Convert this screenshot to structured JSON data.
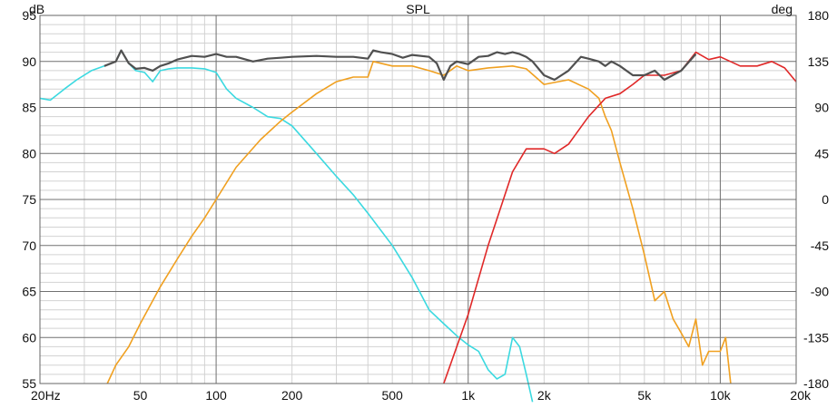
{
  "chart_data": {
    "type": "line",
    "title": "SPL",
    "y_unit_left": "dB",
    "y_unit_right": "deg",
    "x_scale": "log",
    "xlim": [
      20,
      20000
    ],
    "ylim": [
      55,
      95
    ],
    "ylim_right": [
      -180,
      180
    ],
    "grid": true,
    "x_ticks": [
      {
        "value": 20,
        "label": "20Hz"
      },
      {
        "value": 50,
        "label": "50"
      },
      {
        "value": 100,
        "label": "100"
      },
      {
        "value": 200,
        "label": "200"
      },
      {
        "value": 500,
        "label": "500"
      },
      {
        "value": 1000,
        "label": "1k"
      },
      {
        "value": 2000,
        "label": "2k"
      },
      {
        "value": 5000,
        "label": "5k"
      },
      {
        "value": 10000,
        "label": "10k"
      },
      {
        "value": 20000,
        "label": "20k"
      }
    ],
    "y_ticks_left": [
      "95",
      "90",
      "85",
      "80",
      "75",
      "70",
      "65",
      "60",
      "55"
    ],
    "y_ticks_right": [
      "180",
      "135",
      "90",
      "45",
      "0",
      "-45",
      "-90",
      "-135",
      "-180"
    ],
    "series": [
      {
        "color": "#3bd9e0",
        "x": [
          20,
          22,
          25,
          28,
          32,
          36,
          40,
          42,
          45,
          48,
          52,
          56,
          60,
          65,
          70,
          80,
          90,
          100,
          110,
          120,
          140,
          160,
          180,
          200,
          250,
          300,
          350,
          400,
          500,
          600,
          700,
          800,
          900,
          1000,
          1100,
          1200,
          1300,
          1400,
          1500,
          1600,
          1700,
          1800
        ],
        "y": [
          86,
          85.8,
          87,
          88,
          89,
          89.5,
          90,
          91.2,
          89.8,
          89,
          88.8,
          87.8,
          89,
          89.2,
          89.3,
          89.3,
          89.2,
          88.8,
          87,
          86,
          85,
          84,
          83.8,
          83,
          80,
          77.5,
          75.5,
          73.5,
          70,
          66.5,
          63,
          61.5,
          60.2,
          59.2,
          58.5,
          56.5,
          55.5,
          56,
          60,
          59,
          56,
          53
        ]
      },
      {
        "color": "#f0a020",
        "x": [
          37,
          40,
          45,
          50,
          60,
          70,
          80,
          90,
          100,
          120,
          150,
          180,
          200,
          250,
          300,
          350,
          400,
          420,
          450,
          500,
          600,
          700,
          800,
          900,
          1000,
          1200,
          1500,
          1700,
          2000,
          2500,
          3000,
          3300,
          3500,
          3700,
          4000,
          4500,
          5000,
          5500,
          6000,
          6500,
          7000,
          7500,
          8000,
          8500,
          9000,
          10000,
          10500,
          11000
        ],
        "y": [
          55,
          57,
          59,
          61.5,
          65.5,
          68.5,
          71,
          73,
          75,
          78.5,
          81.5,
          83.5,
          84.5,
          86.5,
          87.8,
          88.3,
          88.3,
          90,
          89.8,
          89.5,
          89.5,
          89,
          88.5,
          89.5,
          89,
          89.3,
          89.5,
          89.2,
          87.5,
          88,
          87,
          86,
          84,
          82.5,
          79,
          74,
          69,
          64,
          65,
          62,
          60.5,
          59,
          62,
          57,
          58.5,
          58.5,
          60,
          55
        ]
      },
      {
        "color": "#e02828",
        "x": [
          800,
          1000,
          1200,
          1500,
          1700,
          2000,
          2200,
          2500,
          3000,
          3500,
          4000,
          4500,
          5000,
          6000,
          7000,
          8000,
          9000,
          10000,
          12000,
          14000,
          16000,
          18000,
          20000
        ],
        "y": [
          55,
          62.5,
          70,
          78,
          80.5,
          80.5,
          80,
          81,
          84,
          86,
          86.5,
          87.5,
          88.5,
          88.5,
          89,
          91,
          90.2,
          90.5,
          89.5,
          89.5,
          90,
          89.3,
          87.8
        ]
      },
      {
        "color": "#505050",
        "x": [
          36,
          40,
          42,
          45,
          48,
          52,
          56,
          60,
          65,
          70,
          80,
          90,
          100,
          110,
          120,
          140,
          160,
          180,
          200,
          250,
          300,
          350,
          400,
          420,
          450,
          500,
          550,
          600,
          700,
          750,
          800,
          850,
          900,
          1000,
          1100,
          1200,
          1300,
          1400,
          1500,
          1600,
          1700,
          1800,
          2000,
          2200,
          2500,
          2800,
          3000,
          3300,
          3500,
          3700,
          4000,
          4500,
          5000,
          5500,
          6000,
          7000,
          8000
        ],
        "y": [
          89.5,
          90,
          91.2,
          89.8,
          89.2,
          89.3,
          89,
          89.5,
          89.8,
          90.2,
          90.6,
          90.5,
          90.8,
          90.5,
          90.5,
          90,
          90.3,
          90.4,
          90.5,
          90.6,
          90.5,
          90.5,
          90.3,
          91.2,
          91,
          90.8,
          90.4,
          90.7,
          90.5,
          89.8,
          88,
          89.5,
          90,
          89.7,
          90.5,
          90.6,
          91,
          90.8,
          91,
          90.8,
          90.5,
          90,
          88.5,
          88,
          89,
          90.5,
          90.3,
          90,
          89.5,
          90,
          89.5,
          88.5,
          88.5,
          89,
          88,
          89,
          90.8
        ]
      }
    ]
  }
}
